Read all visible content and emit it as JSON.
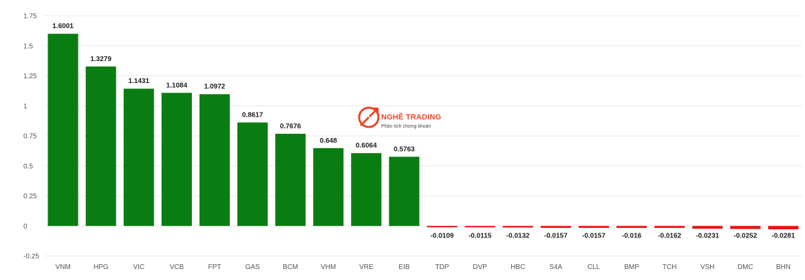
{
  "chart_data": {
    "type": "bar",
    "title": "",
    "xlabel": "",
    "ylabel": "",
    "ylim": [
      -0.25,
      1.75
    ],
    "yticks": [
      -0.25,
      0,
      0.25,
      0.5,
      0.75,
      1,
      1.25,
      1.5,
      1.75
    ],
    "ytick_labels": [
      "-0.25",
      "0",
      "0.25",
      "0.5",
      "0.75",
      "1",
      "1.25",
      "1.5",
      "1.75"
    ],
    "grid": true,
    "legend": "none",
    "categories": [
      "VNM",
      "HPG",
      "VIC",
      "VCB",
      "FPT",
      "GAS",
      "BCM",
      "VHM",
      "VRE",
      "EIB",
      "TDP",
      "DVP",
      "HBC",
      "S4A",
      "CLL",
      "BMP",
      "TCH",
      "VSH",
      "DMC",
      "BHN"
    ],
    "values": [
      1.6001,
      1.3279,
      1.1431,
      1.1084,
      1.0972,
      0.8617,
      0.7676,
      0.648,
      0.6064,
      0.5763,
      -0.0109,
      -0.0115,
      -0.0132,
      -0.0157,
      -0.0157,
      -0.016,
      -0.0162,
      -0.0231,
      -0.0252,
      -0.0281
    ],
    "value_labels": [
      "1.6001",
      "1.3279",
      "1.1431",
      "1.1084",
      "1.0972",
      "0.8617",
      "0.7676",
      "0.648",
      "0.6064",
      "0.5763",
      "-0.0109",
      "-0.0115",
      "-0.0132",
      "-0.0157",
      "-0.0157",
      "-0.016",
      "-0.0162",
      "-0.0231",
      "-0.0252",
      "-0.0281"
    ],
    "colors": {
      "positive": "#0a7d12",
      "negative": "#e8130f"
    }
  },
  "watermark": {
    "title": "NGHỀ TRADING",
    "subtitle": "Phân tích chứng khoán",
    "logo_icon": "chart-arrows-logo-icon",
    "color": "#e8462a"
  }
}
